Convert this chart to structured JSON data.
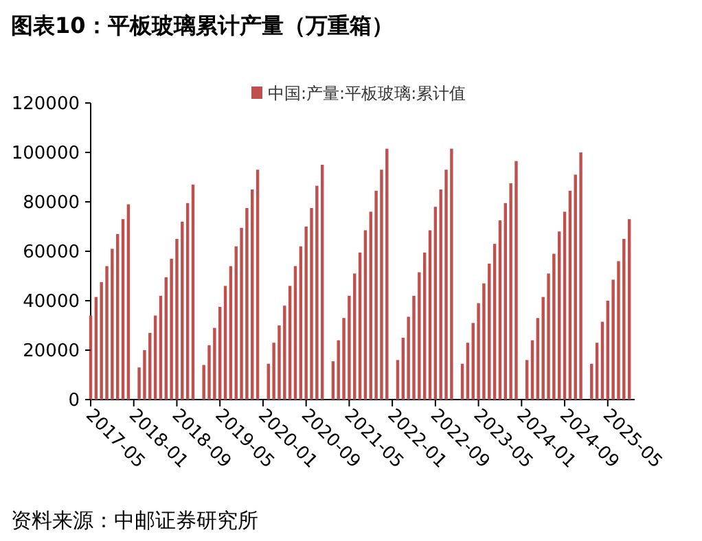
{
  "chart_data": {
    "type": "bar",
    "title": "图表10：平板玻璃累计产量（万重箱）",
    "x": [
      "2017-05",
      "2017-06",
      "2017-07",
      "2017-08",
      "2017-09",
      "2017-10",
      "2017-11",
      "2017-12",
      "2018-02",
      "2018-03",
      "2018-04",
      "2018-05",
      "2018-06",
      "2018-07",
      "2018-08",
      "2018-09",
      "2018-10",
      "2018-11",
      "2018-12",
      "2019-02",
      "2019-03",
      "2019-04",
      "2019-05",
      "2019-06",
      "2019-07",
      "2019-08",
      "2019-09",
      "2019-10",
      "2019-11",
      "2019-12",
      "2020-02",
      "2020-03",
      "2020-04",
      "2020-05",
      "2020-06",
      "2020-07",
      "2020-08",
      "2020-09",
      "2020-10",
      "2020-11",
      "2020-12",
      "2021-02",
      "2021-03",
      "2021-04",
      "2021-05",
      "2021-06",
      "2021-07",
      "2021-08",
      "2021-09",
      "2021-10",
      "2021-11",
      "2021-12",
      "2022-02",
      "2022-03",
      "2022-04",
      "2022-05",
      "2022-06",
      "2022-07",
      "2022-08",
      "2022-09",
      "2022-10",
      "2022-11",
      "2022-12",
      "2023-02",
      "2023-03",
      "2023-04",
      "2023-05",
      "2023-06",
      "2023-07",
      "2023-08",
      "2023-09",
      "2023-10",
      "2023-11",
      "2023-12",
      "2024-02",
      "2024-03",
      "2024-04",
      "2024-05",
      "2024-06",
      "2024-07",
      "2024-08",
      "2024-09",
      "2024-10",
      "2024-11",
      "2024-12",
      "2025-02",
      "2025-03",
      "2025-04",
      "2025-05",
      "2025-06",
      "2025-07",
      "2025-08",
      "2025-09"
    ],
    "series": [
      {
        "name": "中国:产量:平板玻璃:累计值",
        "color": "#c0504d",
        "values": [
          34000,
          41500,
          47500,
          54000,
          61000,
          67000,
          73000,
          79000,
          13000,
          20000,
          27000,
          34000,
          42000,
          49500,
          57000,
          65000,
          72000,
          79500,
          87000,
          14000,
          22000,
          29000,
          37500,
          46000,
          54000,
          62000,
          69500,
          77500,
          85000,
          93000,
          14500,
          23000,
          30000,
          38000,
          46000,
          54000,
          62000,
          70000,
          77500,
          86500,
          95000,
          15500,
          24000,
          33000,
          42000,
          51000,
          59500,
          68500,
          76000,
          84500,
          93000,
          101500,
          16000,
          25000,
          33500,
          42000,
          51500,
          59500,
          68500,
          78000,
          85000,
          93000,
          101500,
          14500,
          23000,
          31000,
          39000,
          47000,
          55000,
          63000,
          72500,
          79500,
          87500,
          96500,
          16000,
          24000,
          33000,
          41500,
          51000,
          59000,
          68000,
          76000,
          84500,
          91000,
          100000,
          14500,
          23000,
          31500,
          40000,
          48500,
          56000,
          65000,
          73000
        ]
      }
    ],
    "xlim": [
      "2017-05",
      "2025-10"
    ],
    "xticks": [
      "2017-05",
      "2018-01",
      "2018-09",
      "2019-05",
      "2020-01",
      "2020-09",
      "2021-05",
      "2022-01",
      "2022-09",
      "2023-05",
      "2024-01",
      "2024-09",
      "2025-05"
    ],
    "ylim": [
      0,
      120000
    ],
    "yticks": [
      0,
      20000,
      40000,
      60000,
      80000,
      100000,
      120000
    ],
    "legend": "top",
    "annotations": [
      "资料来源：中邮证券研究所"
    ]
  }
}
